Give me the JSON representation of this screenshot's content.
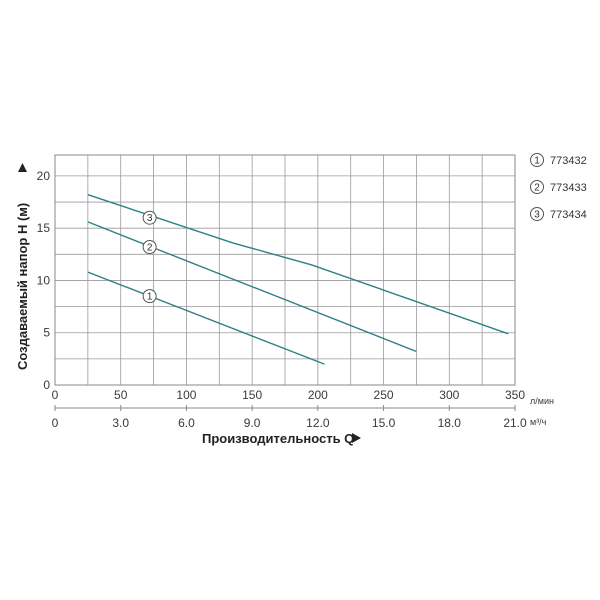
{
  "chart_data": {
    "type": "line",
    "ylabel": "Создаваемый напор H (м)",
    "xlabel": "Производительность Q",
    "x_unit_primary": "л/мин",
    "x_unit_secondary": "м³/ч",
    "xlim": [
      0,
      350
    ],
    "ylim": [
      0,
      22
    ],
    "x_ticks": [
      "0",
      "50",
      "100",
      "150",
      "200",
      "250",
      "300",
      "350"
    ],
    "x_ticks_secondary": [
      "0",
      "3.0",
      "6.0",
      "9.0",
      "12.0",
      "15.0",
      "18.0",
      "21.0"
    ],
    "y_ticks": [
      "0",
      "5",
      "10",
      "15",
      "20"
    ],
    "grid": true,
    "legend_position": "right",
    "series": [
      {
        "name": "773432",
        "marker": "1",
        "points": [
          [
            25,
            10.8
          ],
          [
            205,
            2.0
          ]
        ],
        "marker_point": [
          72,
          8.5
        ]
      },
      {
        "name": "773433",
        "marker": "2",
        "points": [
          [
            25,
            15.6
          ],
          [
            275,
            3.2
          ]
        ],
        "marker_point": [
          72,
          13.2
        ]
      },
      {
        "name": "773434",
        "marker": "3",
        "points": [
          [
            25,
            18.2
          ],
          [
            135,
            13.6
          ],
          [
            195,
            11.5
          ],
          [
            345,
            4.9
          ]
        ],
        "marker_point": [
          72,
          16.0
        ]
      }
    ],
    "line_color": "#2f8088"
  }
}
